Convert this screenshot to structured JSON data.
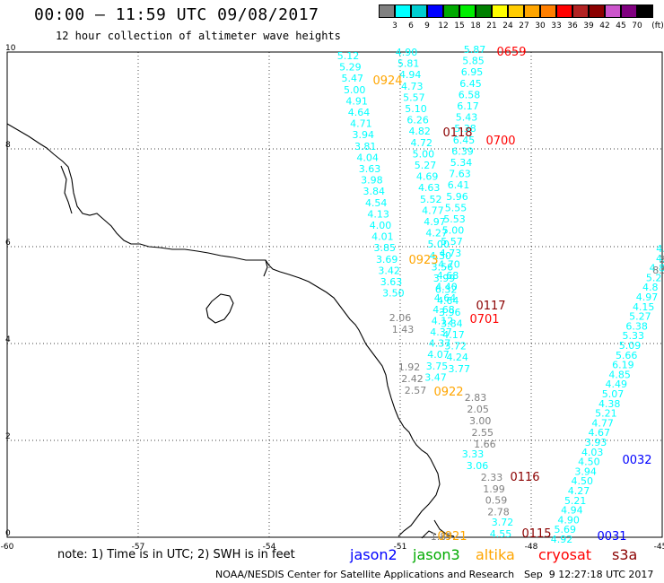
{
  "title": "00:00 – 11:59 UTC 09/08/2017",
  "subtitle": "12 hour collection of altimeter wave heights",
  "legend": {
    "unit": "(ft)",
    "colors": [
      "#808080",
      "#00ffff",
      "#00ced1",
      "#0000ff",
      "#00aa00",
      "#00ee00",
      "#008000",
      "#ffff00",
      "#ffcc00",
      "#ffa500",
      "#ff7f00",
      "#ff0000",
      "#b22222",
      "#8b0000",
      "#cc55cc",
      "#800080",
      "#000000"
    ],
    "labels": [
      "3",
      "6",
      "9",
      "12",
      "15",
      "18",
      "21",
      "24",
      "27",
      "30",
      "33",
      "36",
      "39",
      "42",
      "45",
      "70"
    ]
  },
  "axes": {
    "x_ticks": [
      "-60",
      "-57",
      "-54",
      "-51",
      "-48",
      "-45"
    ],
    "y_ticks": [
      "0",
      "2",
      "4",
      "6",
      "8",
      "10"
    ]
  },
  "note": "note: 1) Time is in UTC; 2) SWH is in feet",
  "satellites": [
    {
      "name": "jason2",
      "color": "#0000ff"
    },
    {
      "name": "jason3",
      "color": "#00aa00"
    },
    {
      "name": "altika",
      "color": "#ffa500"
    },
    {
      "name": "cryosat",
      "color": "#ff0000"
    },
    {
      "name": "s3a",
      "color": "#8b0000"
    }
  ],
  "credit": "NOAA/NESDIS Center for Satellite Applications and Research",
  "timestamp": "Sep  9 12:27:18 UTC 2017",
  "tracks": [
    {
      "name": "track1",
      "color": "#00ffff",
      "values": [
        "5.12",
        "5.29",
        "5.47",
        "5.00",
        "4.91",
        "4.64",
        "4.71",
        "3.94",
        "3.81",
        "4.04",
        "3.63",
        "3.98",
        "3.84",
        "4.54",
        "4.13",
        "4.00",
        "4.01",
        "3.85",
        "3.69",
        "3.42",
        "3.63",
        "3.50"
      ]
    },
    {
      "name": "track1g",
      "color": "#808080",
      "values": [
        "2.06",
        "1.43"
      ]
    },
    {
      "name": "track2",
      "color": "#00ffff",
      "values": [
        "4.90",
        "5.81",
        "4.94",
        "4.73",
        "5.57",
        "5.10",
        "6.26",
        "4.82",
        "4.72",
        "5.00",
        "5.27",
        "4.69",
        "4.63",
        "5.52",
        "4.77",
        "4.97",
        "4.27",
        "5.00",
        "4.30",
        "3.56",
        "3.99",
        "6.32",
        "4.64",
        "3.96",
        "3.84",
        "4.17",
        "3.72",
        "4.24",
        "3.77"
      ]
    },
    {
      "name": "track3",
      "color": "#00ffff",
      "values": [
        "5.87",
        "5.85",
        "6.95",
        "6.45",
        "6.58",
        "6.17",
        "5.43",
        "5.38",
        "6.45",
        "6.39",
        "5.34",
        "7.63",
        "6.41",
        "5.96",
        "5.55",
        "5.53",
        "5.00",
        "5.57",
        "4.73",
        "4.70",
        "4.68",
        "4.40",
        "4.64",
        "4.68",
        "4.12",
        "4.37",
        "4.37",
        "4.07",
        "3.75",
        "3.47"
      ]
    },
    {
      "name": "track4g",
      "color": "#808080",
      "values": [
        "1.92",
        "2.42",
        "2.57"
      ]
    },
    {
      "name": "track5g",
      "color": "#808080",
      "values": [
        "2.83",
        "2.05",
        "3.00",
        "2.55",
        "1.66"
      ]
    },
    {
      "name": "track5",
      "color": "#00ffff",
      "values": [
        "3.33",
        "3.06"
      ]
    },
    {
      "name": "track5h",
      "color": "#808080",
      "values": [
        "2.33",
        "1.99",
        "0.59",
        "2.78"
      ]
    },
    {
      "name": "track5i",
      "color": "#00ffff",
      "values": [
        "3.72",
        "4.55"
      ]
    },
    {
      "name": "track6",
      "color": "#00ffff",
      "values": [
        "4.1",
        "4.",
        "4.8",
        "5.2",
        "4.8",
        "4.97",
        "4.15",
        "5.27",
        "6.38",
        "5.33",
        "5.09",
        "5.66",
        "6.19",
        "4.85",
        "4.49",
        "5.07",
        "4.38",
        "5.21",
        "4.77",
        "4.67",
        "3.93",
        "4.03",
        "4.50",
        "3.94",
        "4.50",
        "4.27",
        "5.21",
        "4.94",
        "4.90",
        "5.69",
        "4.92"
      ]
    },
    {
      "name": "track6g",
      "color": "#808080",
      "values": [
        "2.",
        "8.5"
      ]
    }
  ],
  "bottom_gray": "1.87",
  "time_labels": [
    {
      "text": "0659",
      "color": "#ff0000"
    },
    {
      "text": "0924",
      "color": "#ffa500"
    },
    {
      "text": "0118",
      "color": "#8b0000"
    },
    {
      "text": "0700",
      "color": "#ff0000"
    },
    {
      "text": "0923",
      "color": "#ffa500"
    },
    {
      "text": "0117",
      "color": "#8b0000"
    },
    {
      "text": "0701",
      "color": "#ff0000"
    },
    {
      "text": "0922",
      "color": "#ffa500"
    },
    {
      "text": "0116",
      "color": "#8b0000"
    },
    {
      "text": "0032",
      "color": "#0000ff"
    },
    {
      "text": "0921",
      "color": "#ffa500"
    },
    {
      "text": "0115",
      "color": "#8b0000"
    },
    {
      "text": "0031",
      "color": "#0000ff"
    }
  ]
}
